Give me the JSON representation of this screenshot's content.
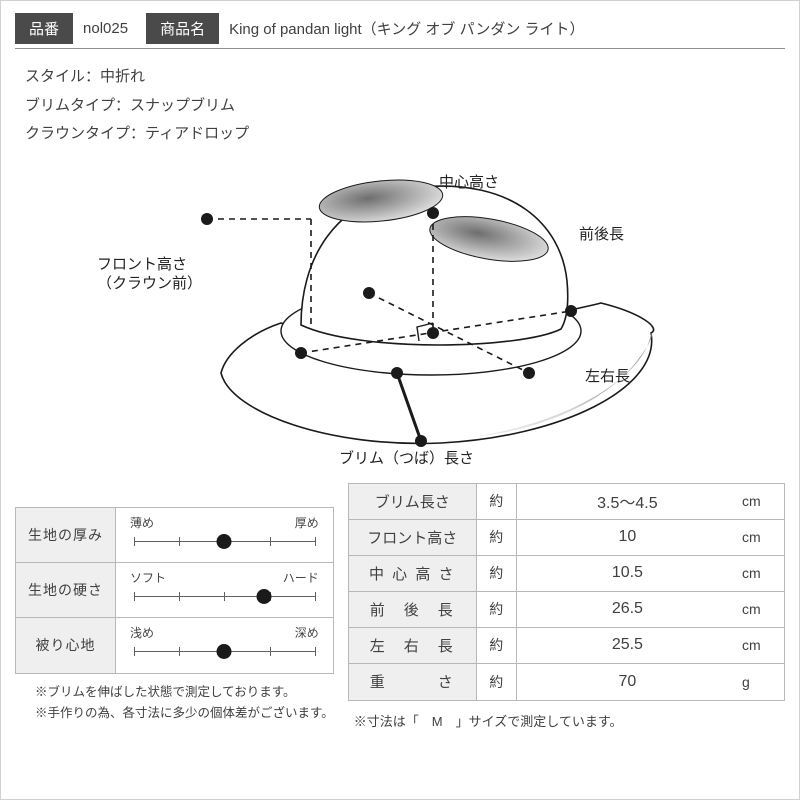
{
  "header": {
    "sku_label": "品番",
    "sku_value": "nol025",
    "name_label": "商品名",
    "name_value": "King of pandan light（キング オブ パンダン ライト）"
  },
  "specs": {
    "style": "スタイル：中折れ",
    "brim_type": "ブリムタイプ：スナップブリム",
    "crown_type": "クラウンタイプ：ティアドロップ"
  },
  "diagram": {
    "label_center_height": "中心高さ",
    "label_front_back": "前後長",
    "label_front_height_1": "フロント高さ",
    "label_front_height_2": "（クラウン前）",
    "label_left_right": "左右長",
    "label_brim": "ブリム（つば）長さ",
    "stroke": "#1a1a1a",
    "fill_light": "#f2f2f2",
    "shade": "#b8b8b8"
  },
  "sliders": [
    {
      "label": "生地の厚み",
      "min": "薄め",
      "max": "厚め",
      "value": 0.5
    },
    {
      "label": "生地の硬さ",
      "min": "ソフト",
      "max": "ハード",
      "value": 0.72
    },
    {
      "label": "被り心地",
      "min": "浅め",
      "max": "深め",
      "value": 0.5
    }
  ],
  "dimensions": {
    "approx": "約",
    "rows": [
      {
        "label": "ブリム長さ",
        "value": "3.5～4.5",
        "unit": "cm",
        "justify": false
      },
      {
        "label": "フロント高さ",
        "value": "10",
        "unit": "cm",
        "justify": false
      },
      {
        "label": "中 心 高 さ",
        "value": "10.5",
        "unit": "cm",
        "justify": true
      },
      {
        "label": "前　後　長",
        "value": "26.5",
        "unit": "cm",
        "justify": true
      },
      {
        "label": "左　右　長",
        "value": "25.5",
        "unit": "cm",
        "justify": true
      },
      {
        "label": "重　　　さ",
        "value": "70",
        "unit": "g",
        "justify": true
      }
    ]
  },
  "notes": {
    "left1": "※ブリムを伸ばした状態で測定しております。",
    "left2": "※手作りの為、各寸法に多少の個体差がございます。",
    "right": "※寸法は「　M　」サイズで測定しています。"
  }
}
